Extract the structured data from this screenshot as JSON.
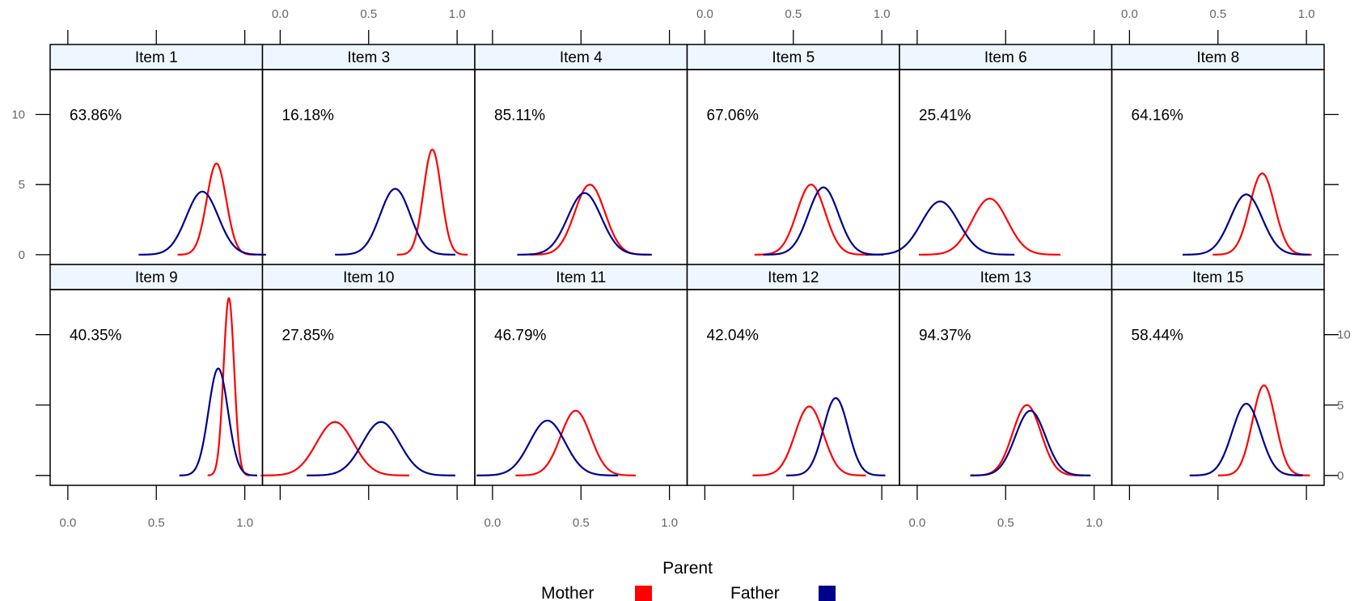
{
  "chart_data": {
    "type": "line",
    "legend": {
      "title": "Parent",
      "entries": [
        {
          "name": "Mother",
          "color": "#ff0000"
        },
        {
          "name": "Father",
          "color": "#00008b"
        }
      ],
      "placement": "bottom"
    },
    "x_ticks": [
      "0.0",
      "0.5",
      "1.0"
    ],
    "y_ticks": [
      "0",
      "5",
      "10"
    ],
    "xlim": [
      -0.1,
      1.1
    ],
    "ylim": [
      -0.7,
      13.2
    ],
    "grid": false,
    "panels": [
      {
        "name": "Item 1",
        "percent": "63.86%",
        "mother": {
          "mean": 0.84,
          "sd": 0.055,
          "peak": 6.5
        },
        "father": {
          "mean": 0.76,
          "sd": 0.09,
          "peak": 4.5
        }
      },
      {
        "name": "Item 3",
        "percent": "16.18%",
        "mother": {
          "mean": 0.86,
          "sd": 0.05,
          "peak": 7.5
        },
        "father": {
          "mean": 0.65,
          "sd": 0.085,
          "peak": 4.7
        }
      },
      {
        "name": "Item 4",
        "percent": "85.11%",
        "mother": {
          "mean": 0.55,
          "sd": 0.085,
          "peak": 5.0
        },
        "father": {
          "mean": 0.52,
          "sd": 0.095,
          "peak": 4.4
        }
      },
      {
        "name": "Item 5",
        "percent": "67.06%",
        "mother": {
          "mean": 0.6,
          "sd": 0.08,
          "peak": 5.0
        },
        "father": {
          "mean": 0.67,
          "sd": 0.085,
          "peak": 4.8
        }
      },
      {
        "name": "Item 6",
        "percent": "25.41%",
        "mother": {
          "mean": 0.41,
          "sd": 0.1,
          "peak": 4.0
        },
        "father": {
          "mean": 0.13,
          "sd": 0.105,
          "peak": 3.8
        }
      },
      {
        "name": "Item 8",
        "percent": "64.16%",
        "mother": {
          "mean": 0.75,
          "sd": 0.07,
          "peak": 5.8
        },
        "father": {
          "mean": 0.66,
          "sd": 0.09,
          "peak": 4.3
        }
      },
      {
        "name": "Item 9",
        "percent": "40.35%",
        "mother": {
          "mean": 0.91,
          "sd": 0.03,
          "peak": 12.6
        },
        "father": {
          "mean": 0.85,
          "sd": 0.055,
          "peak": 7.6
        }
      },
      {
        "name": "Item 10",
        "percent": "27.85%",
        "mother": {
          "mean": 0.31,
          "sd": 0.105,
          "peak": 3.8
        },
        "father": {
          "mean": 0.57,
          "sd": 0.105,
          "peak": 3.8
        }
      },
      {
        "name": "Item 11",
        "percent": "46.79%",
        "mother": {
          "mean": 0.47,
          "sd": 0.085,
          "peak": 4.6
        },
        "father": {
          "mean": 0.31,
          "sd": 0.1,
          "peak": 3.9
        }
      },
      {
        "name": "Item 12",
        "percent": "42.04%",
        "mother": {
          "mean": 0.59,
          "sd": 0.08,
          "peak": 4.9
        },
        "father": {
          "mean": 0.74,
          "sd": 0.07,
          "peak": 5.5
        }
      },
      {
        "name": "Item 13",
        "percent": "94.37%",
        "mother": {
          "mean": 0.62,
          "sd": 0.08,
          "peak": 5.0
        },
        "father": {
          "mean": 0.64,
          "sd": 0.085,
          "peak": 4.6
        }
      },
      {
        "name": "Item 15",
        "percent": "58.44%",
        "mother": {
          "mean": 0.76,
          "sd": 0.065,
          "peak": 6.4
        },
        "father": {
          "mean": 0.66,
          "sd": 0.08,
          "peak": 5.1
        }
      }
    ]
  }
}
